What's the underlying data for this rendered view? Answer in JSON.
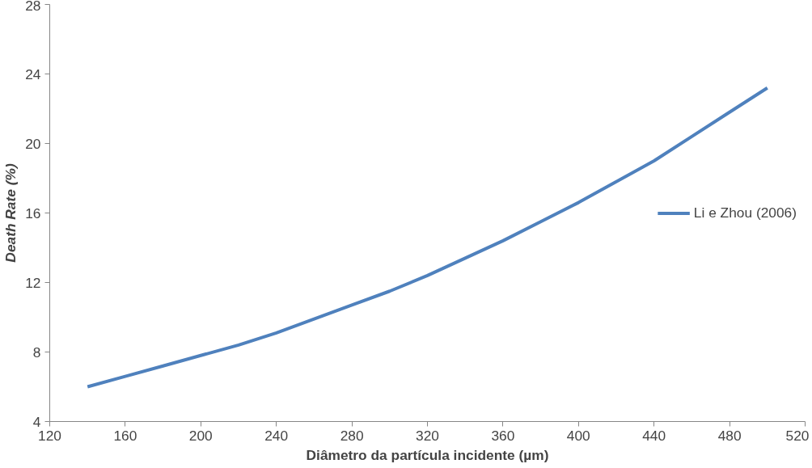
{
  "chart_data": {
    "type": "line",
    "xlabel": "Diâmetro da partícula incidente (µm)",
    "ylabel": "Death Rate (%)",
    "x": [
      140,
      160,
      180,
      200,
      220,
      240,
      260,
      280,
      300,
      320,
      340,
      360,
      380,
      400,
      420,
      440,
      460,
      480,
      500
    ],
    "series": [
      {
        "name": "Li e Zhou (2006)",
        "color": "#4f81bd",
        "values": [
          6.0,
          6.6,
          7.2,
          7.8,
          8.4,
          9.1,
          9.9,
          10.7,
          11.5,
          12.4,
          13.4,
          14.4,
          15.5,
          16.6,
          17.8,
          19.0,
          20.4,
          21.8,
          23.2
        ]
      }
    ],
    "xlim": [
      120,
      520
    ],
    "xticks": [
      120,
      160,
      200,
      240,
      280,
      320,
      360,
      400,
      440,
      480,
      520
    ],
    "ylim": [
      4,
      28
    ],
    "yticks": [
      4,
      8,
      12,
      16,
      20,
      24,
      28
    ],
    "grid": false,
    "legend": "right",
    "marker": "none",
    "line_style": "solid"
  }
}
